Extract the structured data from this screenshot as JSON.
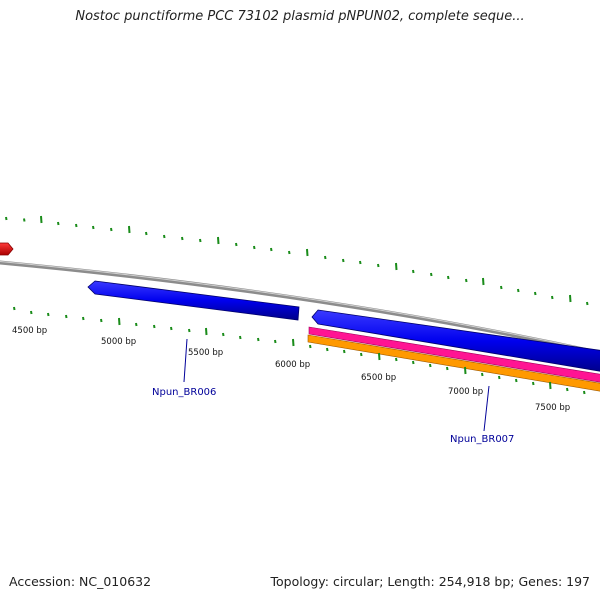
{
  "title": "Nostoc punctiforme PCC 73102 plasmid pNPUN02, complete seque...",
  "ruler_labels": [
    "4500 bp",
    "5000 bp",
    "5500 bp",
    "6000 bp",
    "6500 bp",
    "7000 bp",
    "7500 bp"
  ],
  "genes": [
    {
      "label": "Npun_BR006"
    },
    {
      "label": "Npun_BR007"
    }
  ],
  "colors": {
    "backbone": "#8c8c8c",
    "gene_forward": "#0000ee",
    "gene_other": "#ee0000",
    "feature_pink": "#ff1493",
    "feature_orange": "#ff9900",
    "ticks": "#1a8c1a",
    "label": "#000099"
  },
  "footer": {
    "accession": "Accession: NC_010632",
    "summary": "Topology: circular; Length: 254,918 bp; Genes: 197"
  }
}
